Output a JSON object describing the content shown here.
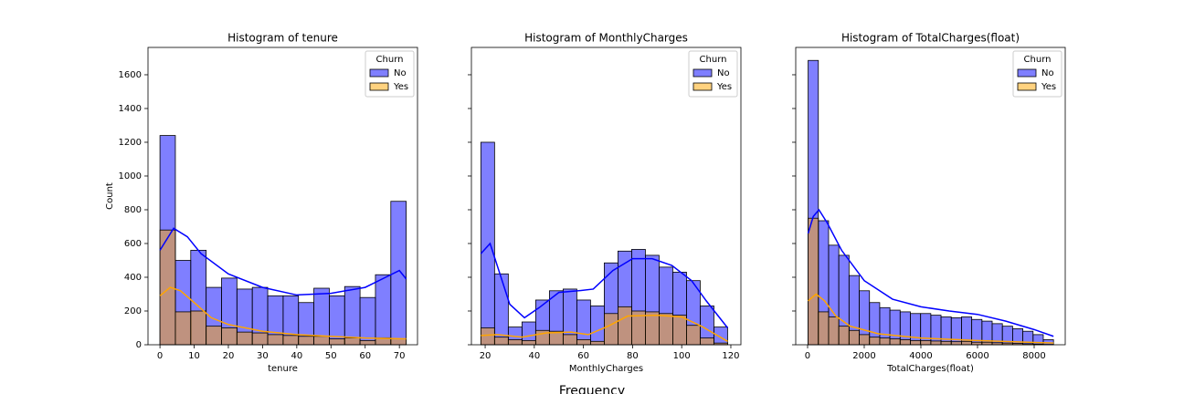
{
  "suptitle": "Frequency",
  "chart_data": [
    {
      "type": "histogram",
      "title": "Histogram of tenure",
      "xlabel": "tenure",
      "ylabel": "Count",
      "legend_title": "Churn",
      "legend": "upper right",
      "bins": [
        0,
        4.5,
        9,
        13.5,
        18,
        22.5,
        27,
        31.5,
        36,
        40.5,
        45,
        49.5,
        54,
        58.5,
        63,
        67.5,
        72
      ],
      "series": [
        {
          "name": "No",
          "color": "#0000ff",
          "values": [
            1240,
            500,
            560,
            340,
            395,
            330,
            340,
            290,
            290,
            250,
            335,
            290,
            345,
            280,
            415,
            850
          ],
          "kde_x": [
            0,
            4,
            8,
            12,
            20,
            30,
            40,
            50,
            60,
            66,
            70,
            72
          ],
          "kde": [
            560,
            690,
            640,
            540,
            420,
            340,
            295,
            305,
            340,
            400,
            440,
            390
          ]
        },
        {
          "name": "Yes",
          "color": "#ffa500",
          "values": [
            680,
            195,
            200,
            110,
            100,
            75,
            70,
            60,
            55,
            50,
            50,
            35,
            40,
            25,
            40,
            35
          ],
          "kde_x": [
            0,
            3,
            6,
            10,
            15,
            20,
            30,
            40,
            50,
            60,
            72
          ],
          "kde": [
            290,
            340,
            320,
            250,
            160,
            120,
            80,
            60,
            50,
            40,
            35
          ]
        }
      ],
      "xlim": [
        -3.5,
        75.3
      ],
      "xticks": [
        0,
        10,
        20,
        30,
        40,
        50,
        60,
        70
      ],
      "ylim": [
        0,
        1762
      ],
      "yticks": [
        0,
        200,
        400,
        600,
        800,
        1000,
        1200,
        1400,
        1600
      ]
    },
    {
      "type": "histogram",
      "title": "Histogram of MonthlyCharges",
      "xlabel": "MonthlyCharges",
      "legend_title": "Churn",
      "legend": "upper right",
      "bins": [
        18.25,
        23.83,
        29.41,
        34.99,
        40.57,
        46.15,
        51.73,
        57.31,
        62.89,
        68.47,
        74.05,
        79.63,
        85.21,
        90.79,
        96.37,
        101.95,
        107.53,
        113.11,
        118.69
      ],
      "series": [
        {
          "name": "No",
          "color": "#0000ff",
          "values": [
            1200,
            420,
            105,
            135,
            265,
            320,
            330,
            265,
            230,
            485,
            555,
            565,
            530,
            460,
            430,
            380,
            230,
            105
          ],
          "kde_x": [
            18.25,
            22,
            26,
            30,
            36,
            42,
            50,
            58,
            64,
            72,
            80,
            88,
            96,
            104,
            110,
            118.69
          ],
          "kde": [
            540,
            600,
            420,
            240,
            160,
            220,
            310,
            320,
            330,
            440,
            510,
            510,
            470,
            380,
            260,
            100
          ]
        },
        {
          "name": "Yes",
          "color": "#ffa500",
          "values": [
            100,
            45,
            30,
            25,
            85,
            80,
            60,
            30,
            20,
            185,
            225,
            200,
            195,
            185,
            175,
            115,
            40,
            10
          ],
          "kde_x": [
            18.25,
            25,
            35,
            45,
            55,
            62,
            70,
            78,
            90,
            100,
            108,
            118.69
          ],
          "kde": [
            55,
            60,
            45,
            70,
            75,
            60,
            110,
            170,
            175,
            165,
            110,
            20
          ]
        }
      ],
      "xlim": [
        14.4,
        124.1
      ],
      "xticks": [
        20,
        40,
        60,
        80,
        100,
        120
      ],
      "ylim": [
        0,
        1762
      ]
    },
    {
      "type": "histogram",
      "title": "Histogram of TotalCharges(float)",
      "xlabel": "TotalCharges(float)",
      "legend_title": "Churn",
      "legend": "upper right",
      "bins": [
        18.8,
        379.8,
        740.8,
        1101.8,
        1462.8,
        1823.8,
        2184.8,
        2545.8,
        2906.8,
        3267.8,
        3628.8,
        3989.8,
        4350.8,
        4711.8,
        5072.8,
        5433.8,
        5794.8,
        6155.8,
        6516.8,
        6877.8,
        7238.8,
        7599.8,
        7960.8,
        8321.8,
        8682.8
      ],
      "series": [
        {
          "name": "No",
          "color": "#0000ff",
          "values": [
            1685,
            735,
            590,
            530,
            410,
            320,
            250,
            220,
            205,
            195,
            185,
            185,
            175,
            165,
            160,
            165,
            150,
            140,
            125,
            110,
            95,
            80,
            60,
            30
          ],
          "kde_x": [
            18.8,
            200,
            400,
            700,
            1200,
            2000,
            3000,
            4000,
            5000,
            6000,
            7000,
            8000,
            8682.8
          ],
          "kde": [
            660,
            760,
            800,
            720,
            560,
            380,
            270,
            225,
            200,
            180,
            140,
            90,
            50
          ]
        },
        {
          "name": "Yes",
          "color": "#ffa500",
          "values": [
            750,
            195,
            165,
            110,
            85,
            60,
            45,
            40,
            35,
            30,
            25,
            25,
            22,
            20,
            18,
            20,
            15,
            15,
            12,
            10,
            8,
            6,
            4,
            2
          ],
          "kde_x": [
            18.8,
            300,
            600,
            1000,
            1500,
            2500,
            4000,
            6000,
            8682.8
          ],
          "kde": [
            260,
            300,
            260,
            170,
            110,
            65,
            40,
            25,
            10
          ]
        }
      ],
      "xlim": [
        -419,
        9097
      ],
      "xticks": [
        0,
        2000,
        4000,
        6000,
        8000
      ],
      "ylim": [
        0,
        1762
      ]
    }
  ]
}
